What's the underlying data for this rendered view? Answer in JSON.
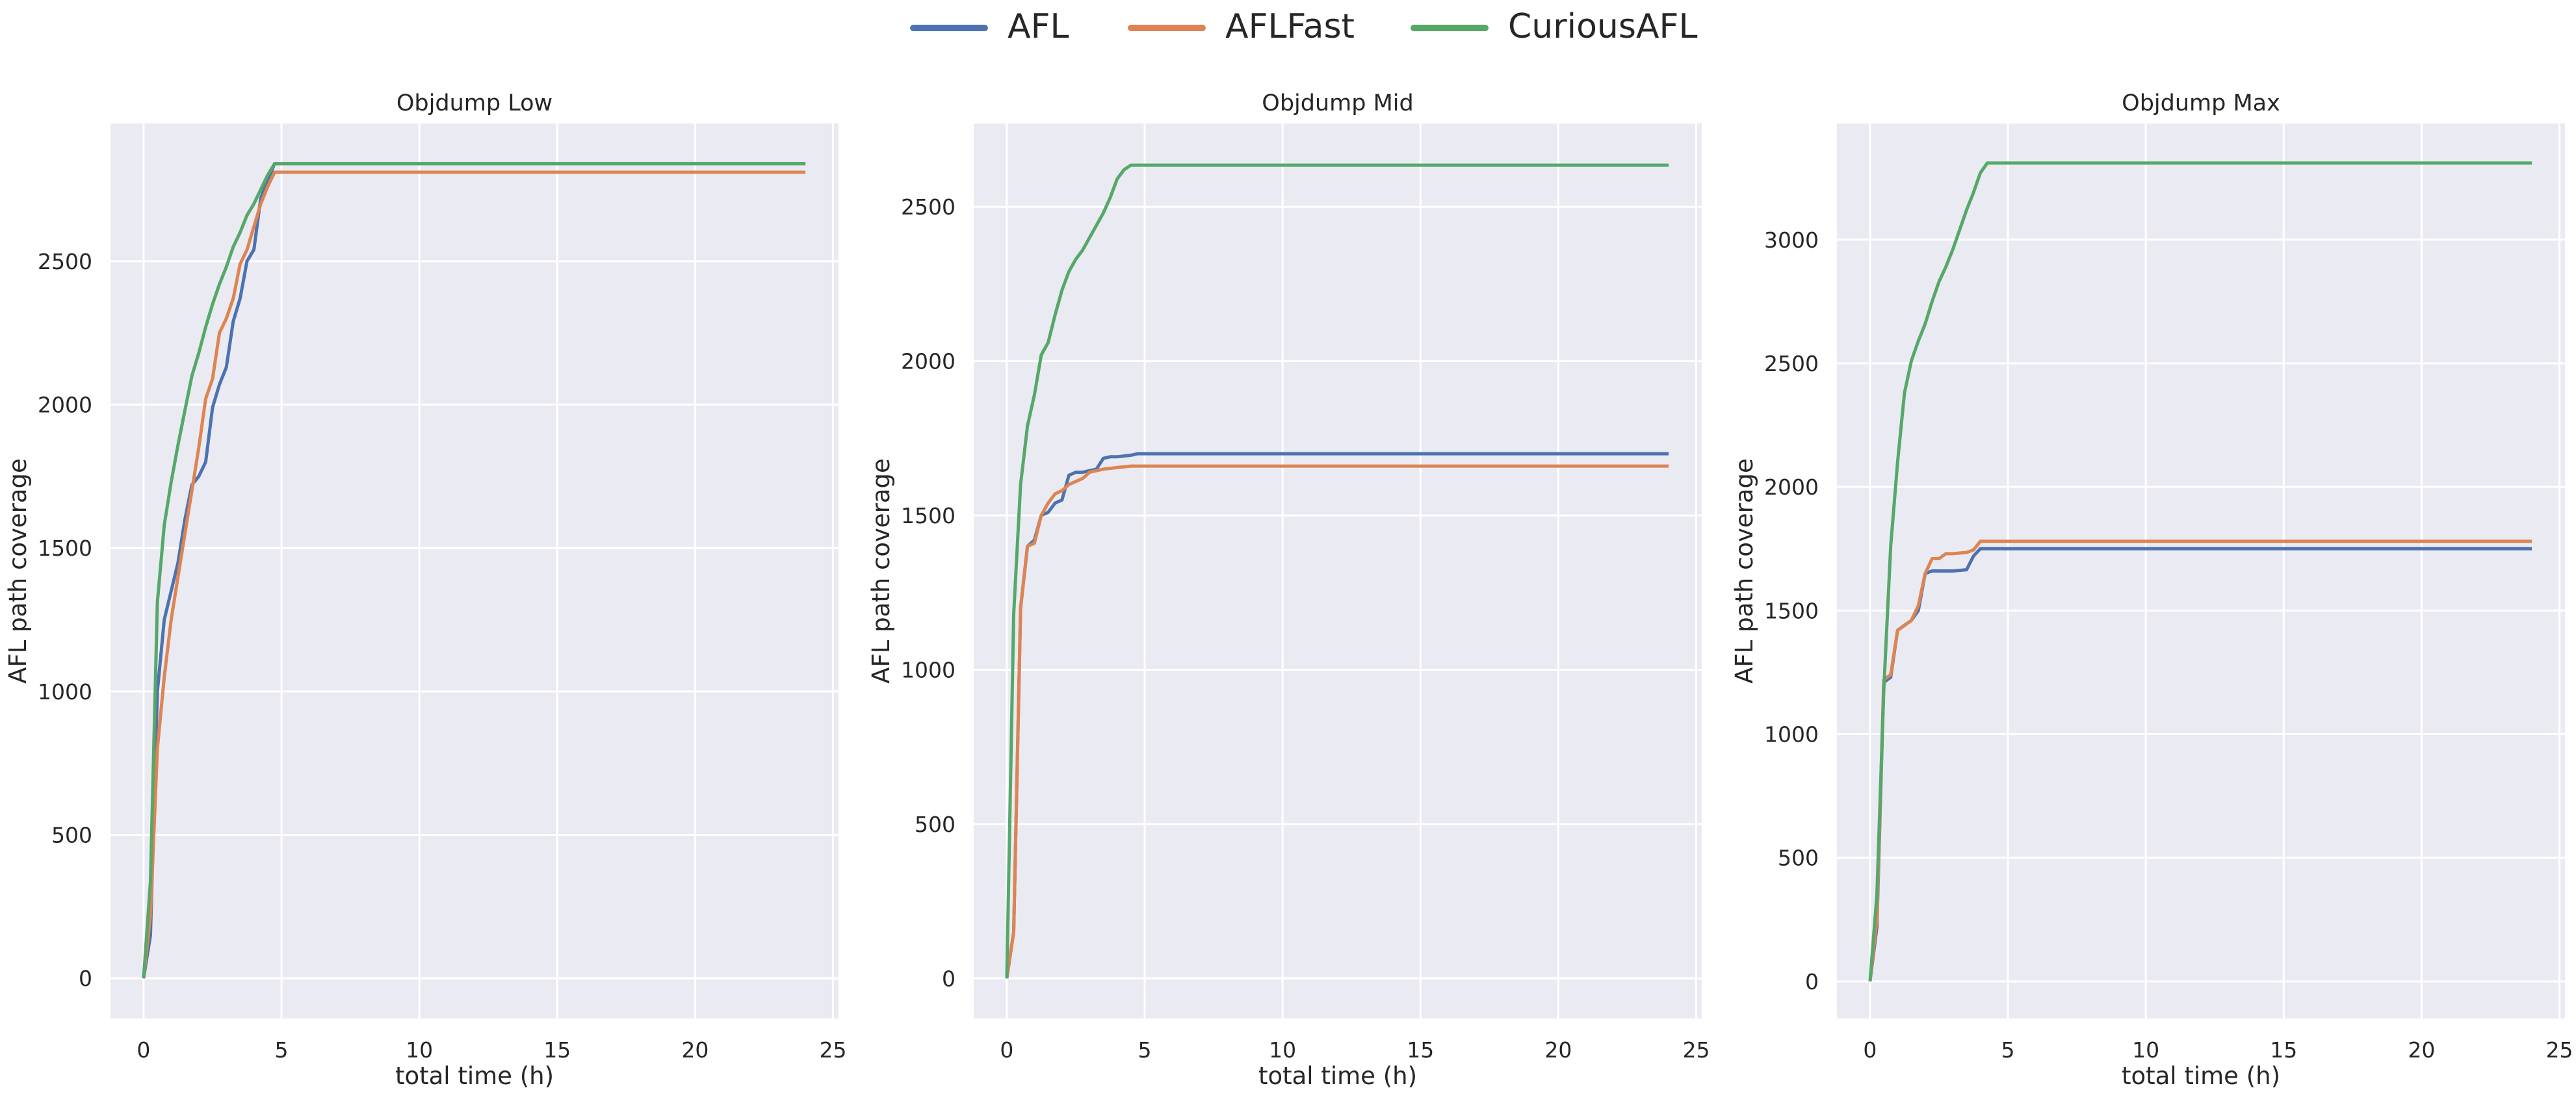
{
  "legend": {
    "placement": "top-center",
    "entries": [
      {
        "name": "AFL",
        "color": "#4c72b0"
      },
      {
        "name": "AFLFast",
        "color": "#dd8452"
      },
      {
        "name": "CuriousAFL",
        "color": "#55a868"
      }
    ]
  },
  "style": {
    "plot_background": "#eaeaf2",
    "grid_color": "#ffffff",
    "grid": true
  },
  "chart_data": [
    {
      "type": "line",
      "title": "Objdump Low",
      "xlabel": "total time (h)",
      "ylabel": "AFL path coverage",
      "xlim": [
        -1.2,
        25.2
      ],
      "ylim": [
        -140,
        2980
      ],
      "xticks": [
        0,
        5,
        10,
        15,
        20,
        25
      ],
      "yticks": [
        0,
        500,
        1000,
        1500,
        2000,
        2500
      ],
      "series": [
        {
          "name": "AFL",
          "color": "#4c72b0",
          "x": [
            0,
            0.25,
            0.5,
            0.75,
            1.0,
            1.25,
            1.5,
            1.75,
            2.0,
            2.25,
            2.5,
            2.75,
            3.0,
            3.25,
            3.5,
            3.75,
            4.0,
            4.25,
            4.5,
            4.75,
            24
          ],
          "y": [
            0,
            150,
            1000,
            1250,
            1350,
            1450,
            1600,
            1720,
            1750,
            1800,
            1990,
            2070,
            2130,
            2290,
            2370,
            2500,
            2540,
            2720,
            2780,
            2840,
            2840
          ]
        },
        {
          "name": "AFLFast",
          "color": "#dd8452",
          "x": [
            0,
            0.25,
            0.5,
            0.75,
            1.0,
            1.25,
            1.5,
            1.75,
            2.0,
            2.25,
            2.5,
            2.75,
            3.0,
            3.25,
            3.5,
            3.75,
            4.0,
            4.25,
            4.5,
            4.75,
            24
          ],
          "y": [
            0,
            220,
            800,
            1050,
            1250,
            1400,
            1550,
            1700,
            1850,
            2020,
            2090,
            2250,
            2300,
            2370,
            2490,
            2540,
            2620,
            2700,
            2760,
            2810,
            2810
          ]
        },
        {
          "name": "CuriousAFL",
          "color": "#55a868",
          "x": [
            0,
            0.25,
            0.5,
            0.75,
            1.0,
            1.25,
            1.5,
            1.75,
            2.0,
            2.25,
            2.5,
            2.75,
            3.0,
            3.25,
            3.5,
            3.75,
            4.0,
            4.25,
            4.5,
            4.75,
            24
          ],
          "y": [
            0,
            340,
            1310,
            1580,
            1730,
            1860,
            1980,
            2100,
            2180,
            2270,
            2350,
            2420,
            2480,
            2550,
            2600,
            2660,
            2700,
            2750,
            2800,
            2840,
            2840
          ]
        }
      ]
    },
    {
      "type": "line",
      "title": "Objdump Mid",
      "xlabel": "total time (h)",
      "ylabel": "AFL path coverage",
      "xlim": [
        -1.2,
        25.2
      ],
      "ylim": [
        -130,
        2770
      ],
      "xticks": [
        0,
        5,
        10,
        15,
        20,
        25
      ],
      "yticks": [
        0,
        500,
        1000,
        1500,
        2000,
        2500
      ],
      "series": [
        {
          "name": "AFL",
          "color": "#4c72b0",
          "x": [
            0,
            0.25,
            0.5,
            0.75,
            1.0,
            1.25,
            1.5,
            1.75,
            2.0,
            2.25,
            2.5,
            2.75,
            3.0,
            3.25,
            3.5,
            3.75,
            4.0,
            4.5,
            4.75,
            24
          ],
          "y": [
            0,
            150,
            1200,
            1400,
            1420,
            1500,
            1510,
            1540,
            1550,
            1630,
            1640,
            1640,
            1645,
            1650,
            1685,
            1690,
            1690,
            1695,
            1700,
            1700
          ]
        },
        {
          "name": "AFLFast",
          "color": "#dd8452",
          "x": [
            0,
            0.25,
            0.5,
            0.75,
            1.0,
            1.25,
            1.5,
            1.75,
            2.0,
            2.25,
            2.5,
            2.75,
            3.0,
            3.5,
            4.0,
            4.5,
            4.75,
            24
          ],
          "y": [
            0,
            150,
            1200,
            1400,
            1410,
            1500,
            1540,
            1570,
            1580,
            1600,
            1610,
            1620,
            1640,
            1650,
            1655,
            1660,
            1660,
            1660
          ]
        },
        {
          "name": "CuriousAFL",
          "color": "#55a868",
          "x": [
            0,
            0.25,
            0.5,
            0.75,
            1.0,
            1.25,
            1.5,
            1.75,
            2.0,
            2.25,
            2.5,
            2.75,
            3.0,
            3.25,
            3.5,
            3.75,
            4.0,
            4.25,
            4.5,
            4.75,
            24
          ],
          "y": [
            0,
            1180,
            1600,
            1790,
            1890,
            2020,
            2060,
            2150,
            2230,
            2290,
            2330,
            2360,
            2400,
            2440,
            2480,
            2530,
            2590,
            2620,
            2635,
            2635,
            2635
          ]
        }
      ]
    },
    {
      "type": "line",
      "title": "Objdump Max",
      "xlabel": "total time (h)",
      "ylabel": "AFL path coverage",
      "xlim": [
        -1.2,
        25.2
      ],
      "ylim": [
        -150,
        3470
      ],
      "xticks": [
        0,
        5,
        10,
        15,
        20,
        25
      ],
      "yticks": [
        0,
        500,
        1000,
        1500,
        2000,
        2500,
        3000
      ],
      "series": [
        {
          "name": "AFL",
          "color": "#4c72b0",
          "x": [
            0,
            0.25,
            0.5,
            0.75,
            1.0,
            1.25,
            1.5,
            1.75,
            2.0,
            2.25,
            2.5,
            3.0,
            3.5,
            3.75,
            4.0,
            24
          ],
          "y": [
            0,
            220,
            1210,
            1230,
            1420,
            1440,
            1460,
            1500,
            1650,
            1660,
            1660,
            1660,
            1665,
            1720,
            1750,
            1750
          ]
        },
        {
          "name": "AFLFast",
          "color": "#dd8452",
          "x": [
            0,
            0.25,
            0.5,
            0.75,
            1.0,
            1.25,
            1.5,
            1.75,
            2.0,
            2.25,
            2.5,
            2.75,
            3.0,
            3.5,
            3.75,
            4.0,
            24
          ],
          "y": [
            0,
            250,
            1220,
            1240,
            1420,
            1440,
            1460,
            1520,
            1650,
            1710,
            1710,
            1730,
            1730,
            1735,
            1745,
            1780,
            1780
          ]
        },
        {
          "name": "CuriousAFL",
          "color": "#55a868",
          "x": [
            0,
            0.25,
            0.5,
            0.75,
            1.0,
            1.25,
            1.5,
            1.75,
            2.0,
            2.25,
            2.5,
            2.75,
            3.0,
            3.25,
            3.5,
            3.75,
            4.0,
            4.25,
            4.5,
            24
          ],
          "y": [
            0,
            350,
            1180,
            1760,
            2100,
            2380,
            2510,
            2590,
            2660,
            2750,
            2830,
            2890,
            2960,
            3040,
            3120,
            3190,
            3270,
            3310,
            3310,
            3310
          ]
        }
      ]
    }
  ]
}
